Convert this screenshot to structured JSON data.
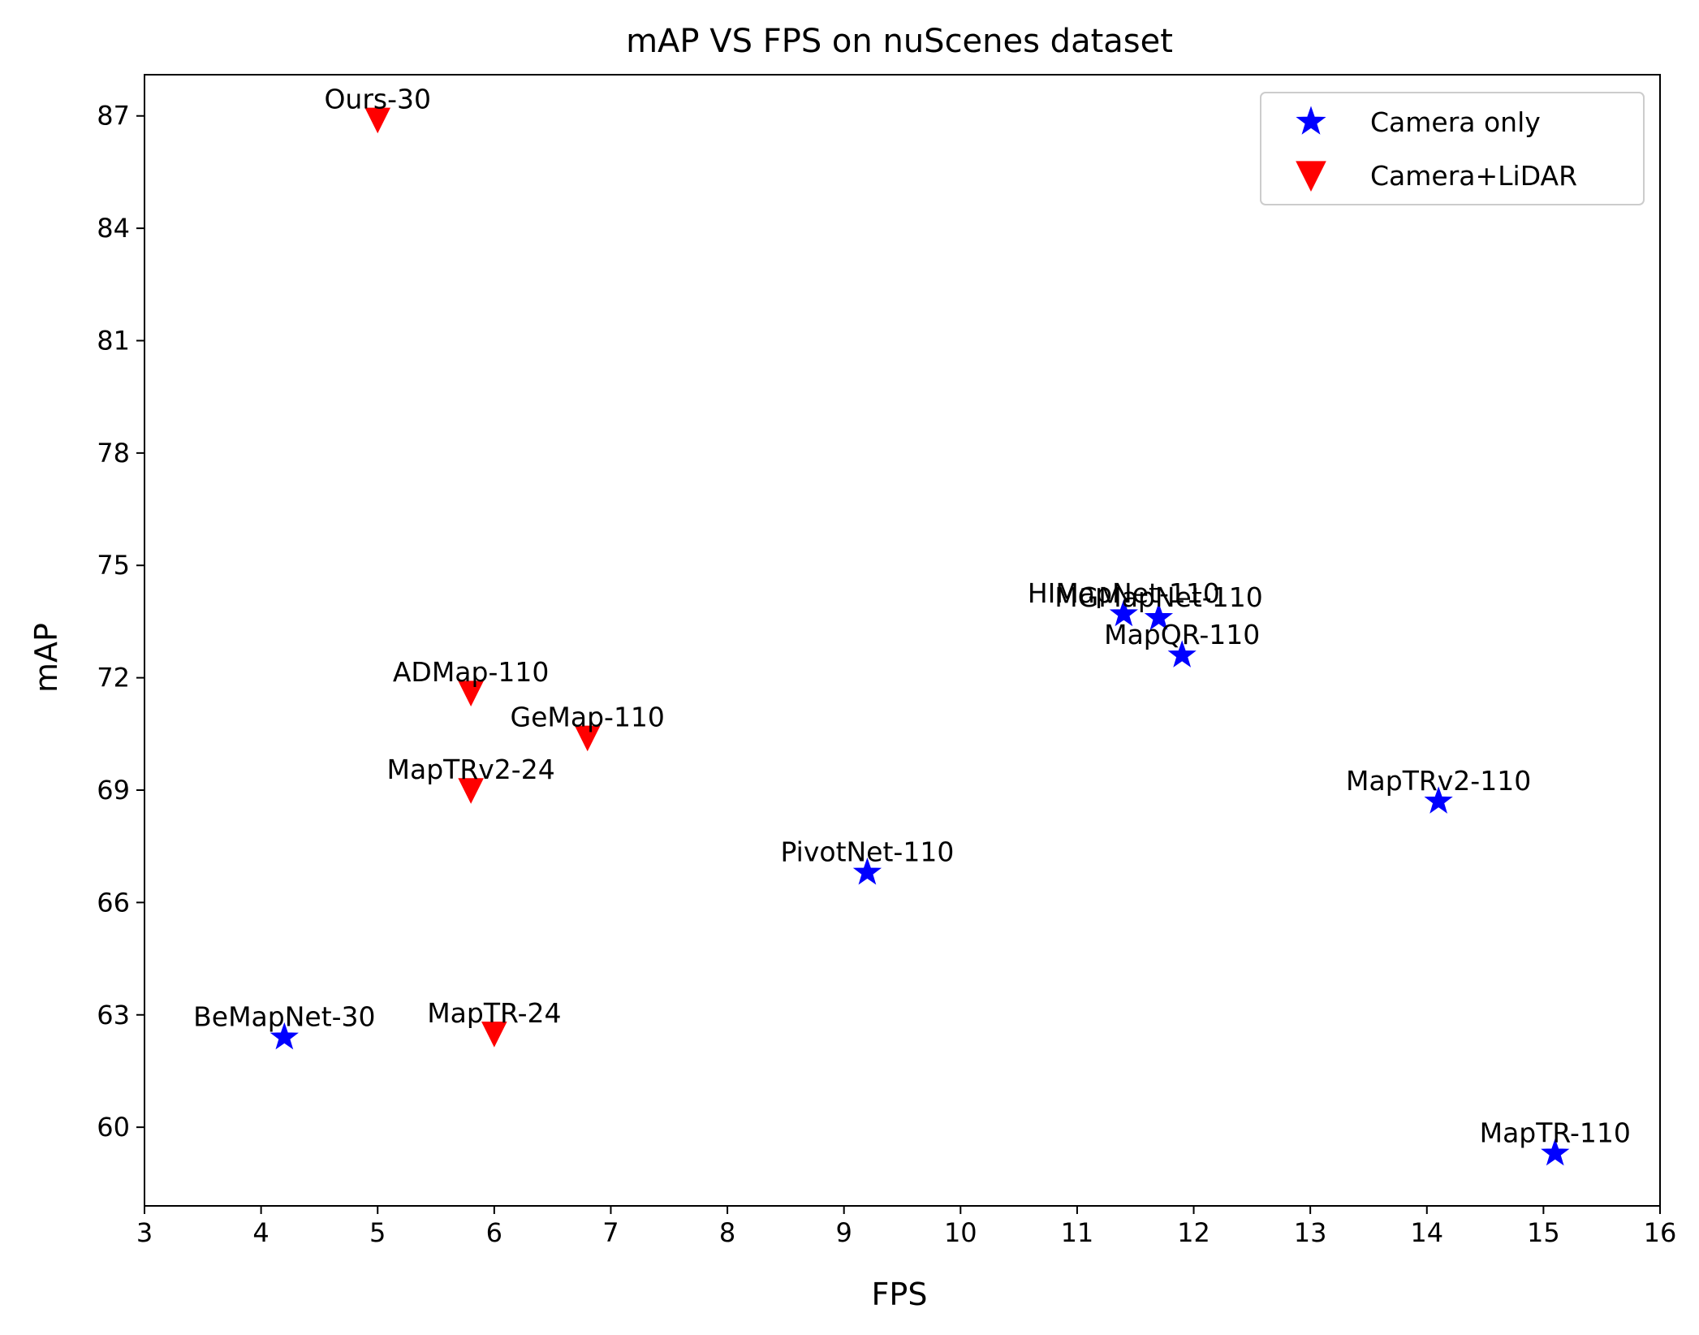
{
  "chart_data": {
    "type": "scatter",
    "title": "mAP VS FPS on nuScenes dataset",
    "xlabel": "FPS",
    "ylabel": "mAP",
    "xlim": [
      3,
      16
    ],
    "ylim": [
      57.9,
      88.1
    ],
    "xticks": [
      3,
      4,
      5,
      6,
      7,
      8,
      9,
      10,
      11,
      12,
      13,
      14,
      15,
      16
    ],
    "yticks": [
      60,
      63,
      66,
      69,
      72,
      75,
      78,
      81,
      84,
      87
    ],
    "grid": false,
    "legend_position": "top-right",
    "series": [
      {
        "name": "Camera only",
        "marker": "star",
        "color": "#0000ff",
        "points": [
          {
            "label": "BeMapNet-30",
            "x": 4.2,
            "y": 62.4
          },
          {
            "label": "PivotNet-110",
            "x": 9.2,
            "y": 66.8
          },
          {
            "label": "HIMapNet-110",
            "x": 11.4,
            "y": 73.7
          },
          {
            "label": "MGMapNet-110",
            "x": 11.7,
            "y": 73.6
          },
          {
            "label": "MapQR-110",
            "x": 11.9,
            "y": 72.6
          },
          {
            "label": "MapTRv2-110",
            "x": 14.1,
            "y": 68.7
          },
          {
            "label": "MapTR-110",
            "x": 15.1,
            "y": 59.3
          }
        ]
      },
      {
        "name": "Camera+LiDAR",
        "marker": "triangle-down",
        "color": "#ff0000",
        "points": [
          {
            "label": "Ours-30",
            "x": 5.0,
            "y": 86.9
          },
          {
            "label": "ADMap-110",
            "x": 5.8,
            "y": 71.6
          },
          {
            "label": "GeMap-110",
            "x": 6.8,
            "y": 70.4
          },
          {
            "label": "MapTRv2-24",
            "x": 5.8,
            "y": 69.0
          },
          {
            "label": "MapTR-24",
            "x": 6.0,
            "y": 62.5
          }
        ]
      }
    ]
  }
}
